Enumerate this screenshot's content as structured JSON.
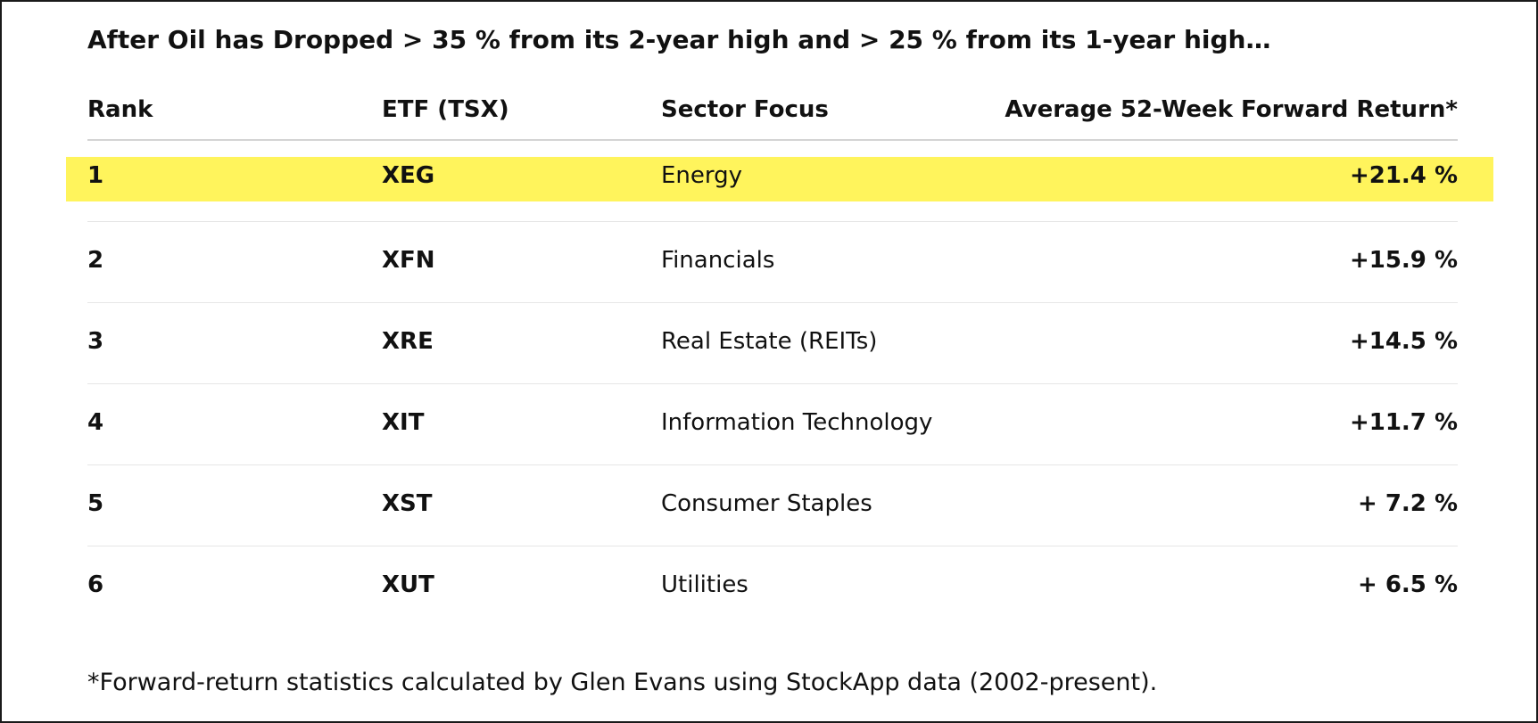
{
  "title": "After Oil has Dropped > 35 % from its 2-year high and > 25 % from its 1-year high…",
  "table": {
    "headers": {
      "rank": "Rank",
      "etf": "ETF (TSX)",
      "sector": "Sector Focus",
      "return": "Average 52-Week Forward Return*"
    },
    "highlight_color": "#fff45c",
    "rows": [
      {
        "rank": "1",
        "etf": "XEG",
        "sector": "Energy",
        "return": "+21.4 %",
        "highlighted": true
      },
      {
        "rank": "2",
        "etf": "XFN",
        "sector": "Financials",
        "return": "+15.9 %"
      },
      {
        "rank": "3",
        "etf": "XRE",
        "sector": "Real Estate (REITs)",
        "return": "+14.5 %"
      },
      {
        "rank": "4",
        "etf": "XIT",
        "sector": "Information Technology",
        "return": "+11.7 %"
      },
      {
        "rank": "5",
        "etf": "XST",
        "sector": "Consumer Staples",
        "return": "+ 7.2 %"
      },
      {
        "rank": "6",
        "etf": "XUT",
        "sector": "Utilities",
        "return": "+ 6.5 %"
      }
    ]
  },
  "footnote": "*Forward-return statistics calculated by Glen Evans using StockApp data (2002-present)."
}
